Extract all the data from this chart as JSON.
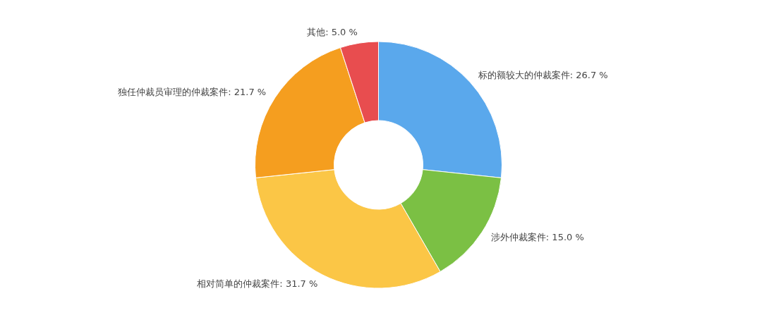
{
  "chart_data": {
    "type": "donut",
    "categories": [
      "标的额较大的仲裁案件",
      "涉外仲裁案件",
      "相对简单的仲裁案件",
      "独任仲裁员审理的仲裁案件",
      "其他"
    ],
    "values": [
      26.7,
      15.0,
      31.7,
      21.7,
      5.0
    ],
    "value_labels": [
      ": 26.7 %",
      ": 15.0 %",
      ": 31.7 %",
      ": 21.7 %",
      ": 5.0 %"
    ],
    "colors": [
      "#5aa8ec",
      "#7bc044",
      "#fbc646",
      "#f59e1f",
      "#e84d4f"
    ]
  }
}
